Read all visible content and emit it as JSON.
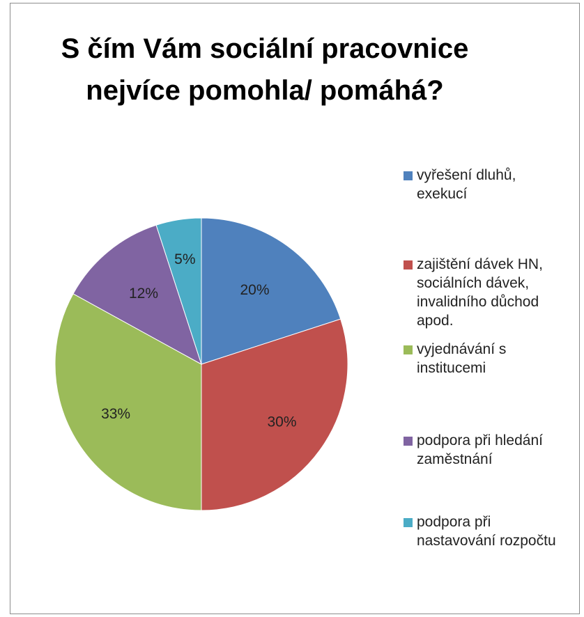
{
  "chart_data": {
    "type": "pie",
    "title": [
      "S čím Vám sociální pracovnice",
      "nejvíce pomohla/ pomáhá?"
    ],
    "categories": [
      "vyřešení dluhů,\nexekucí",
      "zajištění dávek HN,\nsociálních dávek,\ninvalidního důchod\napod.",
      "vyjednávání s\ninstitucemi",
      "podpora při hledání\nzaměstnání",
      "podpora při\nnastavování rozpočtu"
    ],
    "values": [
      20,
      30,
      33,
      12,
      5
    ],
    "data_labels": [
      "20%",
      "30%",
      "33%",
      "12%",
      "5%"
    ],
    "colors": [
      "#4f81bd",
      "#c0504d",
      "#9bbb59",
      "#8064a2",
      "#4bacc6"
    ],
    "legend_position": "right"
  }
}
